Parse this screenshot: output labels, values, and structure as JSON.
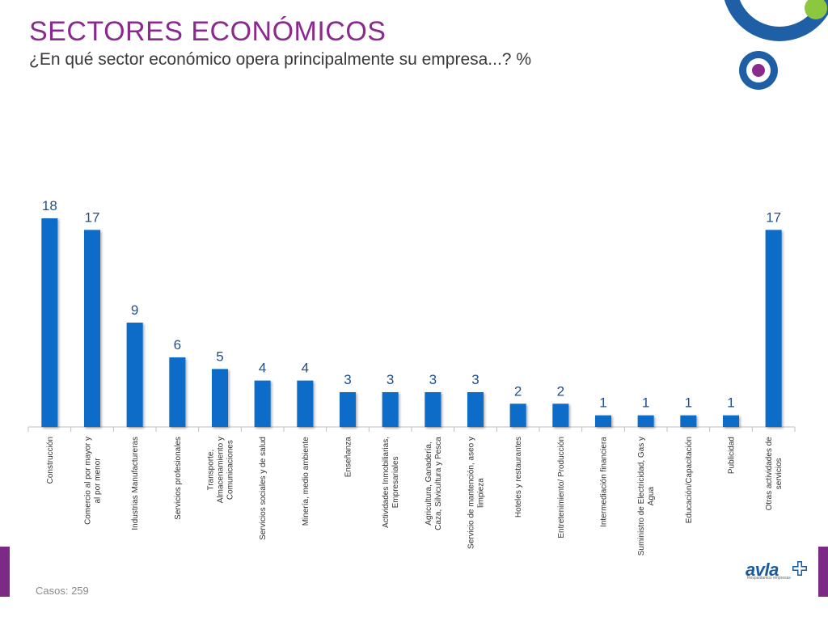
{
  "header": {
    "title": "SECTORES ECONÓMICOS",
    "subtitle": "¿En qué sector económico opera principalmente su empresa...? %"
  },
  "footer": {
    "cases": "Casos: 259"
  },
  "logo": {
    "name": "avla",
    "tagline": "Respaldamos empresas"
  },
  "colors": {
    "title": "#8a2a8f",
    "bar": "#0a6cc7",
    "value_label": "#1f4e8c",
    "axis": "#bfbfbf",
    "accent_purple": "#7b2a85",
    "accent_green": "#8dc63f",
    "accent_blue": "#1f5fa5"
  },
  "chart_data": {
    "type": "bar",
    "title": "SECTORES ECONÓMICOS",
    "subtitle": "¿En qué sector económico opera principalmente su empresa...? %",
    "xlabel": "",
    "ylabel": "",
    "ylim": [
      0,
      18
    ],
    "grid": false,
    "categories": [
      "Construcción",
      "Comercio al por mayor y al por menor",
      "Industrias Manufactureras",
      "Servicios profesionales",
      "Transporte, Almacenamiento y Comunicaciones",
      "Servicios sociales y de salud",
      "Minería, medio ambiente",
      "Enseñanza",
      "Actividades Inmobiliarias, Empresariales",
      "Agricultura, Ganadería, Caza, Silvicultura y Pesca",
      "Servicio de mantención, aseo y limpieza",
      "Hoteles y restaurantes",
      "Entretenimiento/ Producción",
      "Intermediación financiera",
      "Suministro de Electricidad, Gas y Agua",
      "Educación/Capacitación",
      "Publicidad",
      "Otras actividades de servicios"
    ],
    "label_lines": [
      [
        "Construcción"
      ],
      [
        "Comercio al por mayor y",
        "al por menor"
      ],
      [
        "Industrias Manufactureras"
      ],
      [
        "Servicios profesionales"
      ],
      [
        "Transporte,",
        "Almacenamiento y",
        "Comunicaciones"
      ],
      [
        "Servicios sociales y de salud"
      ],
      [
        "Minería, medio ambiente"
      ],
      [
        "Enseñanza"
      ],
      [
        "Actividades  Inmobiliarias,",
        "Empresariales"
      ],
      [
        "Agricultura, Ganadería,",
        "Caza, Silvicultura y Pesca"
      ],
      [
        "Servicio de mantención,  aseo y",
        "limpieza"
      ],
      [
        "Hoteles y restaurantes"
      ],
      [
        "Entretenimiento/ Producción"
      ],
      [
        "Intermediación financiera"
      ],
      [
        "Suministro de Electricidad, Gas y",
        "Agua"
      ],
      [
        "Educación/Capacitación"
      ],
      [
        "Publicidad"
      ],
      [
        "Otras actividades de",
        "servicios"
      ]
    ],
    "values": [
      18,
      17,
      9,
      6,
      5,
      4,
      4,
      3,
      3,
      3,
      3,
      2,
      2,
      1,
      1,
      1,
      1,
      17
    ]
  }
}
